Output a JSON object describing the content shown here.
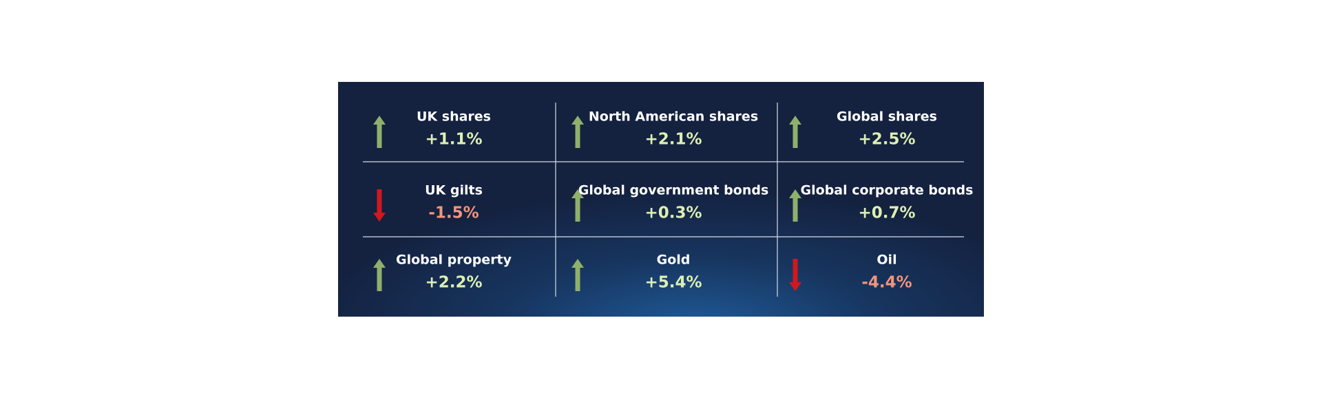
{
  "tiles": [
    {
      "label": "UK shares",
      "value": "+1.1%"
    },
    {
      "label": "North American shares",
      "value": "+2.1%"
    },
    {
      "label": "Global shares",
      "value": "+2.5%"
    },
    {
      "label": "UK gilts",
      "value": "-1.5%"
    },
    {
      "label": "Global government bonds",
      "value": "+0.3%"
    },
    {
      "label": "Global corporate bonds",
      "value": "+0.7%"
    },
    {
      "label": "Global property",
      "value": "+2.2%"
    },
    {
      "label": "Gold",
      "value": "+5.4%"
    },
    {
      "label": "Oil",
      "value": "-4.4%"
    }
  ]
}
